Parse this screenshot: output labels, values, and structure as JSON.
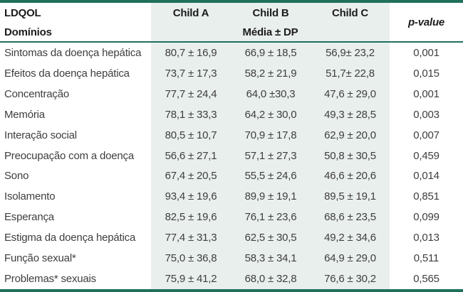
{
  "table": {
    "header": {
      "col1_line1": "LDQOL",
      "col1_line2": "Domínios",
      "child_a": "Child A",
      "child_b": "Child B",
      "child_c": "Child C",
      "subheader": "Média ± DP",
      "p_value": "p-value"
    },
    "rows": [
      {
        "label": "Sintomas da doença hepática",
        "child_a": "80,7 ± 16,9",
        "child_b": "66,9 ± 18,5",
        "child_c": "56,9± 23,2",
        "p": "0,001"
      },
      {
        "label": "Efeitos da doença hepática",
        "child_a": "73,7 ± 17,3",
        "child_b": "58,2 ± 21,9",
        "child_c": "51,7± 22,8",
        "p": "0,015"
      },
      {
        "label": "Concentração",
        "child_a": "77,7 ± 24,4",
        "child_b": "64,0 ±30,3",
        "child_c": "47,6 ± 29,0",
        "p": "0,001"
      },
      {
        "label": "Memória",
        "child_a": "78,1 ± 33,3",
        "child_b": "64,2 ± 30,0",
        "child_c": "49,3 ± 28,5",
        "p": "0,003"
      },
      {
        "label": "Interação social",
        "child_a": "80,5 ± 10,7",
        "child_b": "70,9 ± 17,8",
        "child_c": "62,9 ± 20,0",
        "p": "0,007"
      },
      {
        "label": "Preocupação com a doença",
        "child_a": "56,6 ± 27,1",
        "child_b": "57,1 ± 27,3",
        "child_c": "50,8 ± 30,5",
        "p": "0,459"
      },
      {
        "label": "Sono",
        "child_a": "67,4 ± 20,5",
        "child_b": "55,5 ± 24,6",
        "child_c": "46,6 ± 20,6",
        "p": "0,014"
      },
      {
        "label": "Isolamento",
        "child_a": "93,4 ± 19,6",
        "child_b": "89,9 ± 19,1",
        "child_c": "89,5 ± 19,1",
        "p": "0,851"
      },
      {
        "label": "Esperança",
        "child_a": "82,5 ± 19,6",
        "child_b": "76,1 ± 23,6",
        "child_c": "68,6 ± 23,5",
        "p": "0,099"
      },
      {
        "label": "Estigma da doença hepática",
        "child_a": "77,4 ± 31,3",
        "child_b": "62,5 ± 30,5",
        "child_c": "49,2 ± 34,6",
        "p": "0,013"
      },
      {
        "label": "Função sexual*",
        "child_a": "75,0 ± 36,8",
        "child_b": "58,3 ± 34,1",
        "child_c": "64,9 ± 29,0",
        "p": "0,511"
      },
      {
        "label": "Problemas* sexuais",
        "child_a": "75,9 ± 41,2",
        "child_b": "68,0 ± 32,8",
        "child_c": "76,6 ± 30,2",
        "p": "0,565"
      }
    ]
  },
  "colors": {
    "accent_teal": "#20705c",
    "shade_band": "#e9efec"
  }
}
